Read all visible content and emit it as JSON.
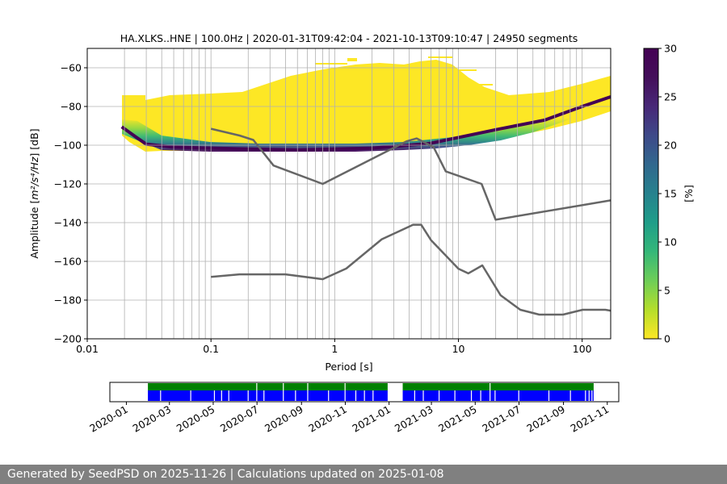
{
  "chart_data": [
    {
      "type": "heatmap",
      "title": "HA.XLKS..HNE | 100.0Hz | 2020-01-31T09:42:04 - 2021-10-13T09:10:47 | 24950 segments",
      "xlabel": "Period [s]",
      "ylabel_prefix": "Amplitude [",
      "ylabel_math": "m²/s⁴/Hz",
      "ylabel_suffix": "] [dB]",
      "x_scale": "log",
      "xlim": [
        0.01,
        170
      ],
      "ylim": [
        -200,
        -50
      ],
      "x_ticks": [
        {
          "value": 0.01,
          "label": "0.01"
        },
        {
          "value": 0.1,
          "label": "0.1"
        },
        {
          "value": 1,
          "label": "1"
        },
        {
          "value": 10,
          "label": "10"
        },
        {
          "value": 100,
          "label": "100"
        }
      ],
      "y_ticks": [
        {
          "value": -200,
          "label": "−200"
        },
        {
          "value": -180,
          "label": "−180"
        },
        {
          "value": -160,
          "label": "−160"
        },
        {
          "value": -140,
          "label": "−140"
        },
        {
          "value": -120,
          "label": "−120"
        },
        {
          "value": -100,
          "label": "−100"
        },
        {
          "value": -80,
          "label": "−80"
        },
        {
          "value": -60,
          "label": "−60"
        }
      ],
      "grid": true,
      "grid_periods": [
        0.02,
        0.03,
        0.04,
        0.05,
        0.06,
        0.07,
        0.08,
        0.09,
        0.1,
        0.2,
        0.3,
        0.4,
        0.5,
        0.6,
        0.7,
        0.8,
        0.9,
        1,
        2,
        3,
        4,
        5,
        6,
        7,
        8,
        9,
        10,
        20,
        30,
        40,
        50,
        60,
        70,
        80,
        90,
        100
      ],
      "noise_models": [
        {
          "x": [
            0.1,
            0.17,
            0.22,
            0.32,
            0.8,
            3.8,
            4.6,
            6.3,
            7.9,
            15.4,
            20,
            170
          ],
          "y": [
            -91.5,
            -95,
            -97.3,
            -110.5,
            -120,
            -98,
            -96.5,
            -101,
            -113.5,
            -120,
            -138.5,
            -128.5
          ]
        },
        {
          "x": [
            0.1,
            0.17,
            0.4,
            0.8,
            1.24,
            2.4,
            4.3,
            5,
            6,
            10,
            12,
            15.6,
            21.9,
            31.6,
            45,
            70,
            101,
            154,
            170
          ],
          "y": [
            -168,
            -166.7,
            -166.7,
            -169.2,
            -163.7,
            -148.6,
            -141.1,
            -141.1,
            -149,
            -163.8,
            -166.2,
            -162.1,
            -177.5,
            -185,
            -187.5,
            -187.5,
            -185,
            -185,
            -185.5
          ]
        }
      ],
      "psd_mode": [
        {
          "x": 0.019,
          "y": -90.5
        },
        {
          "x": 0.025,
          "y": -96
        },
        {
          "x": 0.03,
          "y": -99.5
        },
        {
          "x": 0.05,
          "y": -101
        },
        {
          "x": 0.1,
          "y": -101.5
        },
        {
          "x": 0.2,
          "y": -102
        },
        {
          "x": 0.5,
          "y": -102.5
        },
        {
          "x": 1,
          "y": -102
        },
        {
          "x": 2,
          "y": -101.5
        },
        {
          "x": 4,
          "y": -100
        },
        {
          "x": 6,
          "y": -99
        },
        {
          "x": 10,
          "y": -96
        },
        {
          "x": 20,
          "y": -92
        },
        {
          "x": 50,
          "y": -87
        },
        {
          "x": 100,
          "y": -80
        },
        {
          "x": 170,
          "y": -75
        }
      ],
      "colorbar": {
        "label": "[%]",
        "range": [
          0,
          30
        ],
        "ticks": [
          {
            "value": 0,
            "label": "0"
          },
          {
            "value": 5,
            "label": "5"
          },
          {
            "value": 10,
            "label": "10"
          },
          {
            "value": 15,
            "label": "15"
          },
          {
            "value": 20,
            "label": "20"
          },
          {
            "value": 25,
            "label": "25"
          },
          {
            "value": 30,
            "label": "30"
          }
        ]
      }
    },
    {
      "type": "timeline",
      "xlim": [
        "2019-12-09",
        "2021-11-17"
      ],
      "ticks": [
        {
          "value": "2020-01-01",
          "label": "2020-01"
        },
        {
          "value": "2020-03-01",
          "label": "2020-03"
        },
        {
          "value": "2020-05-01",
          "label": "2020-05"
        },
        {
          "value": "2020-07-01",
          "label": "2020-07"
        },
        {
          "value": "2020-09-01",
          "label": "2020-09"
        },
        {
          "value": "2020-11-01",
          "label": "2020-11"
        },
        {
          "value": "2021-01-01",
          "label": "2021-01"
        },
        {
          "value": "2021-03-01",
          "label": "2021-03"
        },
        {
          "value": "2021-05-01",
          "label": "2021-05"
        },
        {
          "value": "2021-07-01",
          "label": "2021-07"
        },
        {
          "value": "2021-09-01",
          "label": "2021-09"
        },
        {
          "value": "2021-11-01",
          "label": "2021-11"
        }
      ],
      "green_coverage": [
        [
          "2020-01-31",
          "2020-12-30"
        ],
        [
          "2021-01-20",
          "2021-10-13"
        ]
      ],
      "blue_coverage": [
        [
          "2020-01-31",
          "2020-12-30"
        ],
        [
          "2021-01-20",
          "2021-10-13"
        ]
      ],
      "green_gaps": [
        "2020-06-30",
        "2020-08-06",
        "2020-09-09",
        "2020-10-31",
        "2021-05-21"
      ],
      "blue_gaps": [
        "2020-02-17",
        "2020-03-30",
        "2020-05-02",
        "2020-05-12",
        "2020-05-22",
        "2020-06-18",
        "2020-06-30",
        "2020-07-10",
        "2020-08-06",
        "2020-08-23",
        "2020-09-09",
        "2020-10-08",
        "2020-10-31",
        "2020-11-15",
        "2020-11-27",
        "2020-12-09",
        "2021-02-05",
        "2021-02-17",
        "2021-03-11",
        "2021-04-02",
        "2021-04-25",
        "2021-05-08",
        "2021-05-21",
        "2021-05-28",
        "2021-06-30",
        "2021-08-11",
        "2021-09-10",
        "2021-10-01",
        "2021-10-06",
        "2021-10-10"
      ]
    }
  ],
  "footer": {
    "text": "Generated by SeedPSD on 2025-11-26 | Calculations updated on 2025-01-08"
  }
}
